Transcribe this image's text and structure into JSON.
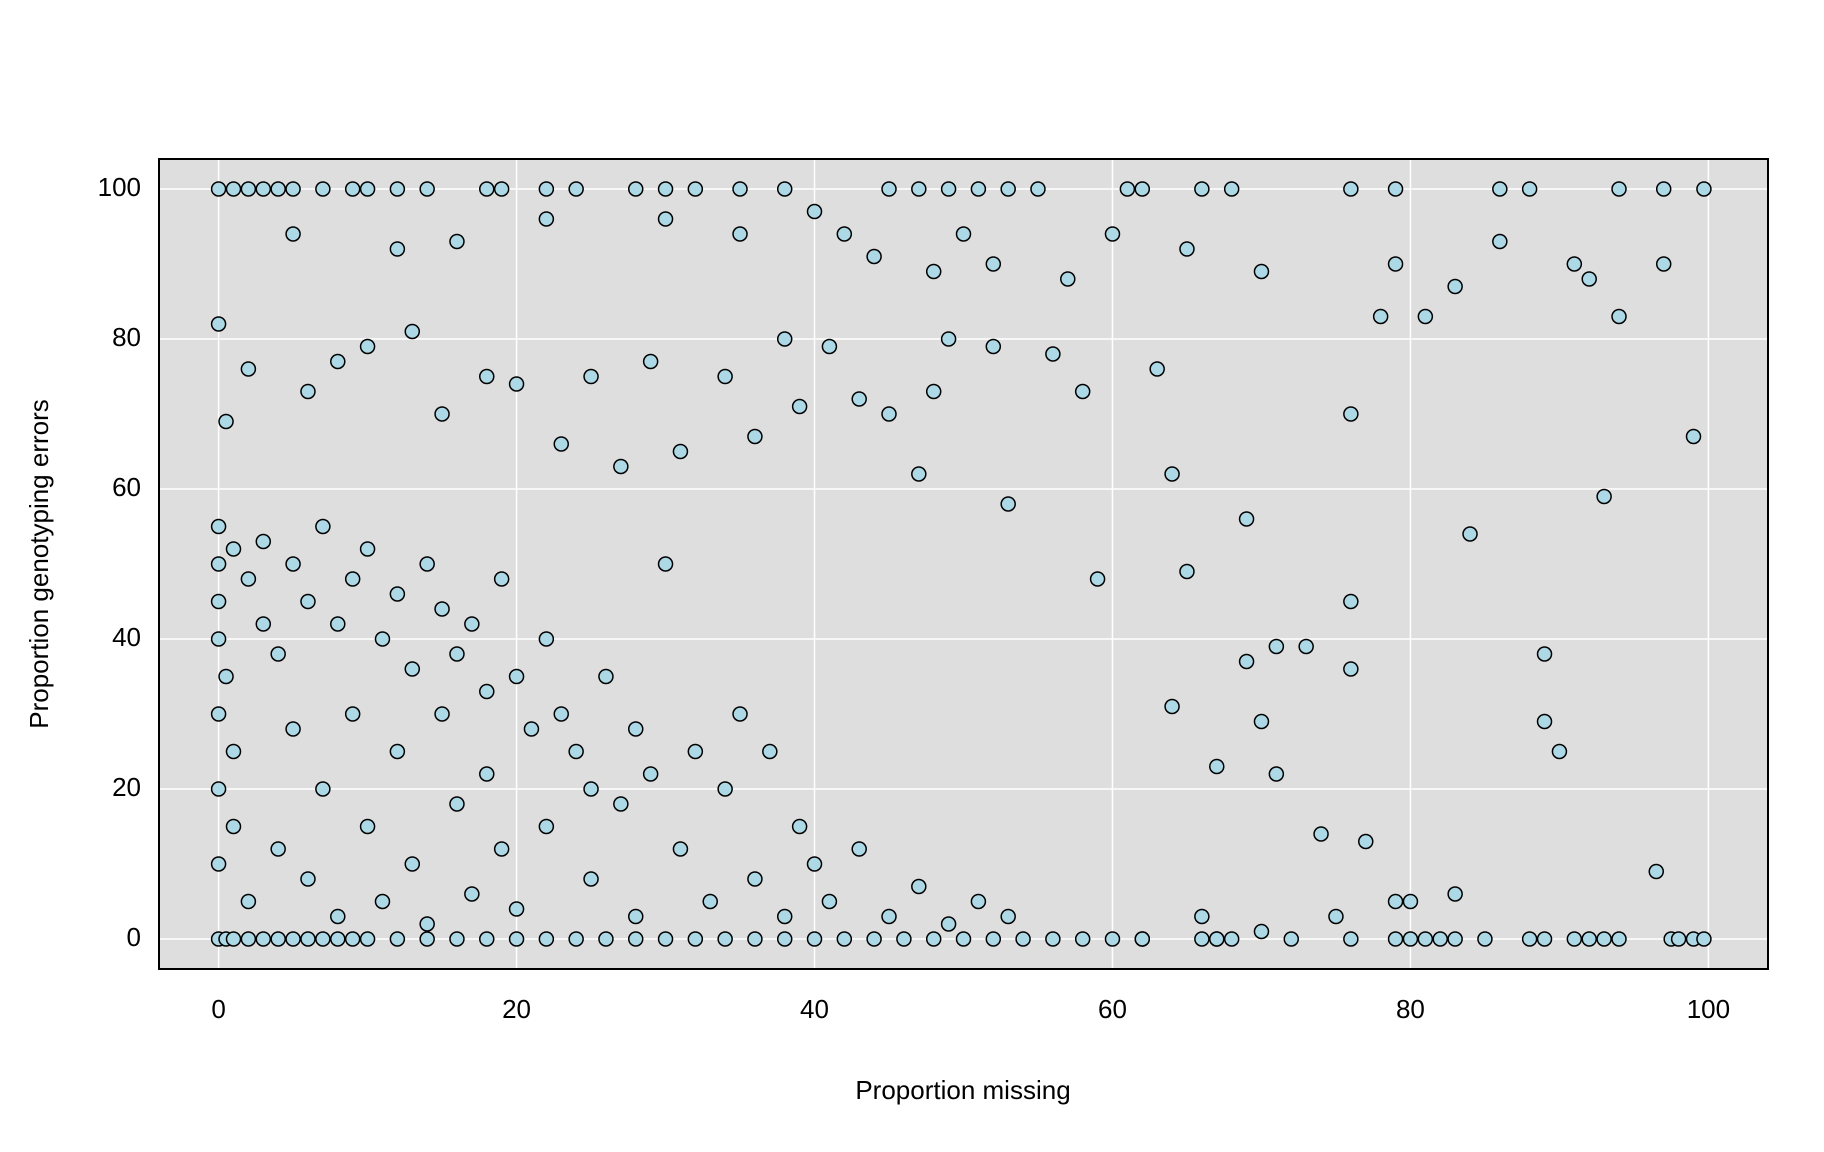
{
  "chart_data": {
    "type": "scatter",
    "x_label": "Proportion missing",
    "y_label": "Proportion genotyping errors",
    "x": [
      0,
      0.5,
      1,
      2,
      3,
      4,
      5,
      6,
      7,
      8,
      9,
      10,
      12,
      14,
      16,
      18,
      20,
      22,
      24,
      26,
      28,
      30,
      32,
      34,
      36,
      38,
      40,
      42,
      44,
      46,
      48,
      50,
      52,
      54,
      56,
      58,
      60,
      62,
      66,
      67,
      68,
      72,
      76,
      79,
      80,
      81,
      82,
      83,
      85,
      88,
      89,
      91,
      92,
      93,
      94,
      97.5,
      98,
      99,
      99.7,
      0,
      1,
      2,
      3,
      4,
      5,
      7,
      9,
      10,
      12,
      14,
      18,
      19,
      22,
      24,
      28,
      30,
      32,
      35,
      38,
      45,
      47,
      49,
      51,
      53,
      55,
      61,
      62,
      66,
      68,
      76,
      79,
      86,
      88,
      94,
      97,
      99.7,
      0,
      0,
      0,
      0,
      0,
      0,
      0,
      0.5,
      1,
      1,
      1,
      2,
      2,
      3,
      3,
      4,
      4,
      5,
      5,
      6,
      6,
      7,
      7,
      8,
      8,
      9,
      9,
      10,
      10,
      11,
      11,
      12,
      12,
      13,
      13,
      14,
      14,
      15,
      15,
      16,
      16,
      17,
      17,
      18,
      18,
      19,
      19,
      20,
      20,
      21,
      22,
      22,
      23,
      24,
      25,
      25,
      26,
      27,
      28,
      28,
      29,
      30,
      31,
      32,
      33,
      34,
      35,
      36,
      37,
      38,
      39,
      40,
      41,
      43,
      45,
      47,
      49,
      51,
      53,
      0,
      0.5,
      2,
      6,
      8,
      10,
      13,
      15,
      18,
      20,
      23,
      25,
      27,
      29,
      31,
      34,
      36,
      38,
      39,
      41,
      43,
      45,
      47,
      48,
      49,
      52,
      53,
      56,
      58,
      22,
      35,
      42,
      44,
      48,
      50,
      52,
      57,
      60,
      65,
      70,
      5,
      12,
      16,
      30,
      40,
      59,
      63,
      64,
      64,
      65,
      67,
      69,
      69,
      70,
      71,
      73,
      74,
      76,
      76,
      77,
      79,
      80,
      83,
      84,
      86,
      89,
      89,
      90,
      91,
      92,
      93,
      94,
      96.5,
      97,
      99,
      76,
      71,
      67,
      62,
      78,
      81,
      83,
      79,
      75,
      70,
      66
    ],
    "values": [
      0,
      0,
      0,
      0,
      0,
      0,
      0,
      0,
      0,
      0,
      0,
      0,
      0,
      0,
      0,
      0,
      0,
      0,
      0,
      0,
      0,
      0,
      0,
      0,
      0,
      0,
      0,
      0,
      0,
      0,
      0,
      0,
      0,
      0,
      0,
      0,
      0,
      0,
      0,
      0,
      0,
      0,
      0,
      0,
      0,
      0,
      0,
      0,
      0,
      0,
      0,
      0,
      0,
      0,
      0,
      0,
      0,
      0,
      0,
      100,
      100,
      100,
      100,
      100,
      100,
      100,
      100,
      100,
      100,
      100,
      100,
      100,
      100,
      100,
      100,
      100,
      100,
      100,
      100,
      100,
      100,
      100,
      100,
      100,
      100,
      100,
      100,
      100,
      100,
      100,
      100,
      100,
      100,
      100,
      100,
      100,
      50,
      45,
      40,
      30,
      20,
      10,
      55,
      35,
      52,
      25,
      15,
      48,
      5,
      42,
      53,
      38,
      12,
      50,
      28,
      45,
      8,
      55,
      20,
      42,
      3,
      48,
      30,
      52,
      15,
      40,
      5,
      46,
      25,
      36,
      10,
      50,
      2,
      44,
      30,
      38,
      18,
      42,
      6,
      33,
      22,
      48,
      12,
      35,
      4,
      28,
      40,
      15,
      30,
      25,
      20,
      8,
      35,
      18,
      28,
      3,
      22,
      50,
      12,
      25,
      5,
      20,
      30,
      8,
      25,
      3,
      15,
      10,
      5,
      12,
      3,
      7,
      2,
      5,
      3,
      82,
      69,
      76,
      73,
      77,
      79,
      81,
      70,
      75,
      74,
      66,
      75,
      63,
      77,
      65,
      75,
      67,
      80,
      71,
      79,
      72,
      70,
      62,
      73,
      80,
      79,
      58,
      78,
      73,
      96,
      94,
      94,
      91,
      89,
      94,
      90,
      88,
      94,
      92,
      89,
      94,
      92,
      93,
      96,
      97,
      48,
      76,
      62,
      31,
      49,
      23,
      37,
      56,
      29,
      39,
      39,
      14,
      45,
      70,
      13,
      5,
      5,
      6,
      54,
      93,
      38,
      29,
      25,
      90,
      88,
      59,
      83,
      9,
      90,
      67,
      36,
      22,
      0,
      0,
      83,
      83,
      87,
      90,
      3,
      1,
      3
    ],
    "color": "#add8e6",
    "edge_color": "#000000",
    "background": "#dedede",
    "grid": true,
    "xlim": [
      -4,
      104
    ],
    "ylim": [
      -4,
      104
    ],
    "xticks": [
      0,
      20,
      40,
      60,
      80,
      100
    ],
    "yticks": [
      0,
      20,
      40,
      60,
      80,
      100
    ]
  }
}
